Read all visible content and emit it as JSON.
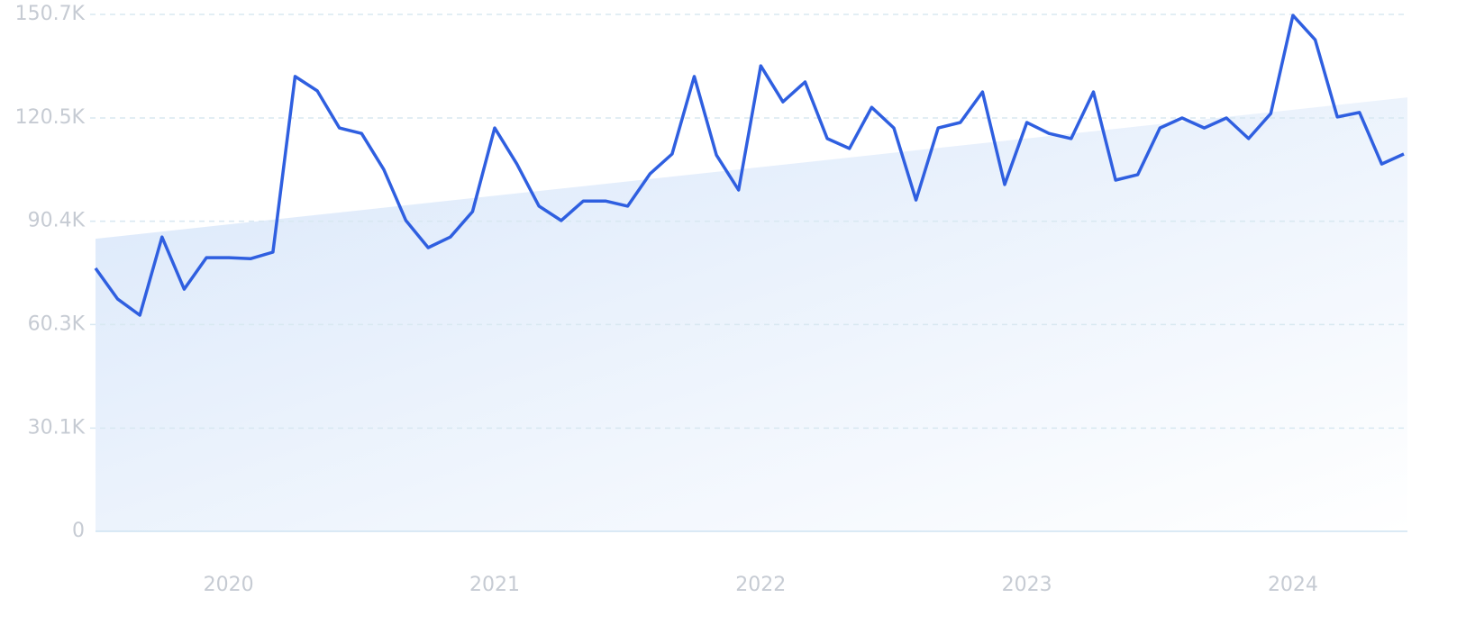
{
  "chart_data": {
    "type": "line",
    "categories": [
      null,
      null,
      null,
      null,
      null,
      null,
      "2020",
      null,
      null,
      null,
      null,
      null,
      null,
      null,
      null,
      null,
      null,
      null,
      "2021",
      null,
      null,
      null,
      null,
      null,
      null,
      null,
      null,
      null,
      null,
      null,
      "2022",
      null,
      null,
      null,
      null,
      null,
      null,
      null,
      null,
      null,
      null,
      null,
      "2023",
      null,
      null,
      null,
      null,
      null,
      null,
      null,
      null,
      null,
      null,
      null,
      "2024",
      null,
      null,
      null,
      null,
      null
    ],
    "series": [
      {
        "color": "#2f5fe0",
        "values": [
          76.7,
          67.7,
          63.0,
          85.8,
          70.6,
          79.8,
          79.8,
          79.5,
          81.4,
          132.6,
          128.4,
          117.6,
          116.0,
          105.5,
          90.6,
          82.7,
          85.8,
          93.2,
          117.6,
          107.1,
          94.8,
          90.6,
          96.3,
          96.3,
          94.8,
          104.2,
          110.0,
          132.6,
          109.7,
          99.5,
          135.7,
          125.2,
          131.0,
          114.5,
          111.6,
          123.6,
          117.6,
          96.6,
          117.6,
          119.2,
          128.1,
          101.1,
          119.2,
          116.0,
          114.5,
          128.1,
          102.4,
          104.0,
          117.6,
          120.5,
          117.6,
          120.5,
          114.5,
          121.8,
          150.4,
          143.3,
          120.8,
          122.1,
          107.1,
          110.0
        ]
      }
    ],
    "trend": [
      85.3,
      126.5
    ],
    "ylim": [
      0,
      150.7
    ],
    "yticks": [
      0,
      {
        "value": 30.1,
        "label": "30.1K"
      },
      {
        "value": 60.3,
        "label": "60.3K"
      },
      {
        "value": 90.4,
        "label": "90.4K"
      },
      {
        "value": 120.5,
        "label": "120.5K"
      },
      {
        "value": 150.7,
        "label": "150.7K"
      }
    ],
    "grid": true
  }
}
